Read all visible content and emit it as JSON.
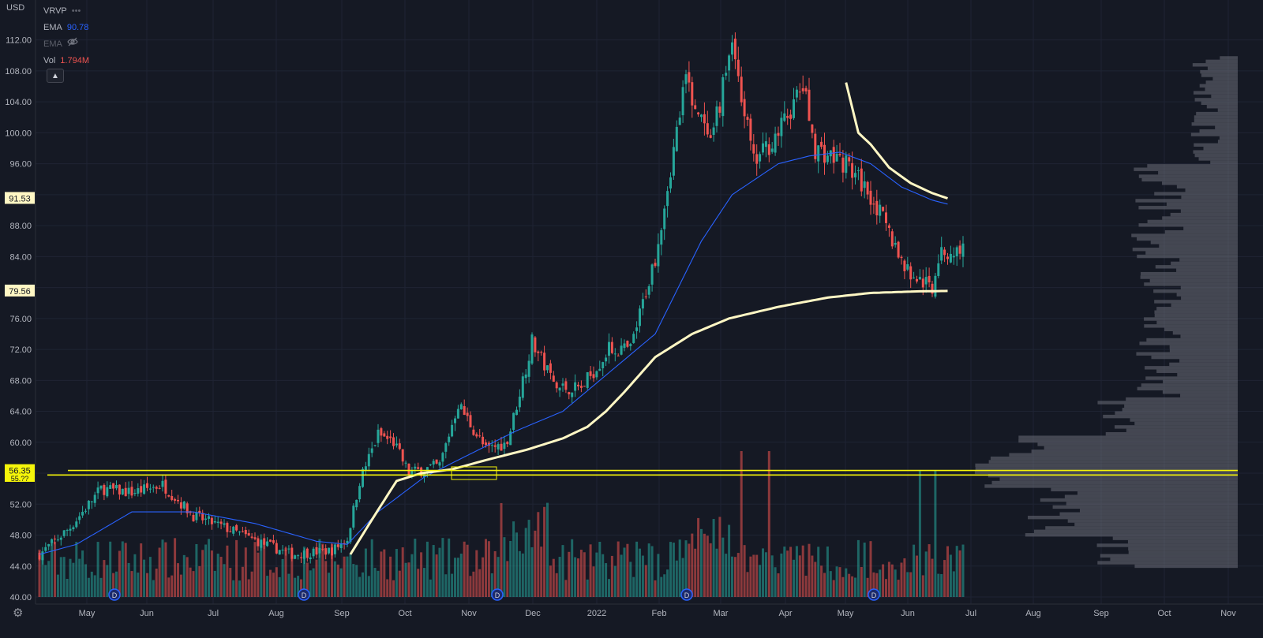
{
  "currency": "USD",
  "legend": {
    "indicator_name": "VRVP",
    "indicator_more": "•••",
    "ema1_label": "EMA",
    "ema1_value": "90.78",
    "ema2_label": "EMA",
    "vol_label": "Vol",
    "vol_value": "1.794M"
  },
  "colors": {
    "background": "#151924",
    "grid": "#1f2433",
    "up": "#26a69a",
    "down": "#ef5350",
    "ema_blue": "#2962ff",
    "ema_cream": "#fff7c4",
    "hline": "#f5f50a",
    "profile": "#6b6e78"
  },
  "price_labels": {
    "ema_cream_long": "79.56",
    "ema_cream_short": "91.53",
    "hline_top": "56.35",
    "hline_bottom": "55.??"
  },
  "chart_data": {
    "type": "candlestick",
    "symbol_indicators": [
      "EMA 90.78",
      "EMA",
      "Vol 1.794M",
      "VRVP"
    ],
    "y_axis": {
      "ticks": [
        40,
        44,
        48,
        52,
        56,
        60,
        64,
        68,
        72,
        76,
        80,
        84,
        88,
        92,
        96,
        100,
        104,
        108,
        112
      ],
      "ylim": [
        39.6,
        114.2
      ]
    },
    "x_axis": {
      "ticks": [
        "May",
        "Jun",
        "Jul",
        "Aug",
        "Sep",
        "Oct",
        "Nov",
        "Dec",
        "2022",
        "Feb",
        "Mar",
        "Apr",
        "May",
        "Jun",
        "Jul",
        "Aug",
        "Sep",
        "Oct",
        "Nov"
      ]
    },
    "price_path": {
      "days": [
        0,
        10,
        20,
        30,
        40,
        50,
        60,
        72,
        82,
        95,
        100,
        104,
        110,
        115,
        120,
        130,
        136,
        145,
        152,
        160,
        168,
        176,
        185,
        192,
        200,
        210,
        218,
        225,
        232,
        240,
        248,
        252,
        262,
        270,
        282,
        290,
        292,
        300,
        310
      ],
      "close": [
        45.5,
        49,
        54,
        53.5,
        54.5,
        50.5,
        49,
        47,
        45.5,
        46,
        47.5,
        55,
        61,
        60,
        56,
        57,
        65,
        59,
        60,
        73,
        67,
        67,
        72,
        72,
        84,
        107,
        98,
        112,
        96,
        100,
        106,
        98,
        96,
        92,
        82,
        80,
        84,
        85,
        null
      ]
    },
    "ema_cream_long_path": {
      "days": [
        101,
        108,
        116,
        124,
        134,
        146,
        158,
        170,
        178,
        184,
        190,
        200,
        212,
        224,
        240,
        256,
        270,
        285,
        295
      ],
      "values": [
        45.5,
        50,
        55,
        56,
        56.5,
        57.8,
        59,
        60.5,
        62,
        64,
        66.5,
        71,
        74,
        76,
        77.5,
        78.7,
        79.3,
        79.5,
        79.56
      ]
    },
    "ema_blue_path": {
      "days": [
        0,
        12,
        30,
        50,
        70,
        90,
        100,
        110,
        125,
        140,
        155,
        170,
        185,
        200,
        215,
        225,
        240,
        250,
        260,
        270,
        280,
        290,
        295
      ],
      "values": [
        45.5,
        46.8,
        51,
        51,
        49.5,
        47.2,
        46.8,
        51,
        55.5,
        58.5,
        61.5,
        64,
        69,
        74,
        86,
        92,
        96,
        97,
        97.5,
        96,
        93,
        91.3,
        90.78
      ]
    },
    "ema_cream_short_path": {
      "days": [
        262,
        266,
        270,
        276,
        283,
        290,
        295
      ],
      "values": [
        106.5,
        100,
        98.5,
        95.5,
        93.5,
        92.2,
        91.53
      ]
    },
    "horizontal_lines": [
      56.35,
      55.77
    ],
    "dividend_markers": [
      "D",
      "D",
      "D",
      "D",
      "D"
    ],
    "volume": {
      "last_value": "1.794M"
    }
  }
}
